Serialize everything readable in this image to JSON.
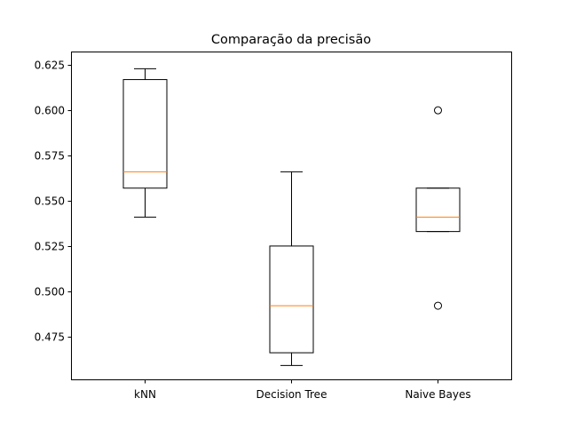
{
  "chart_data": {
    "type": "boxplot",
    "title": "Comparação da precisão",
    "xlabel": "",
    "ylabel": "",
    "ylim": [
      0.4513,
      0.6325
    ],
    "grid": false,
    "categories": [
      "kNN",
      "Decision Tree",
      "Naive Bayes"
    ],
    "yticks": [
      0.475,
      0.5,
      0.525,
      0.55,
      0.575,
      0.6,
      0.625
    ],
    "ytick_labels": [
      "0.475",
      "0.500",
      "0.525",
      "0.550",
      "0.575",
      "0.600",
      "0.625"
    ],
    "boxes": [
      {
        "whislo": 0.541,
        "q1": 0.557,
        "med": 0.566,
        "q3": 0.617,
        "whishi": 0.623,
        "fliers": []
      },
      {
        "whislo": 0.459,
        "q1": 0.466,
        "med": 0.492,
        "q3": 0.525,
        "whishi": 0.566,
        "fliers": []
      },
      {
        "whislo": 0.533,
        "q1": 0.533,
        "med": 0.541,
        "q3": 0.557,
        "whishi": 0.557,
        "fliers": [
          0.6,
          0.492
        ]
      }
    ],
    "colors": {
      "box": "#000000",
      "median": "#ff7f0e",
      "flier": "#000000"
    }
  }
}
